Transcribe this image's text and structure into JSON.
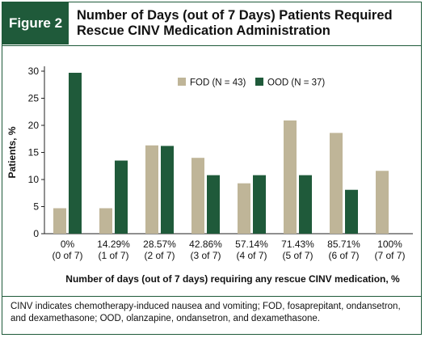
{
  "figure": {
    "label": "Figure 2",
    "title_line1": "Number of Days (out of 7 Days) Patients Required",
    "title_line2": "Rescue CINV Medication Administration"
  },
  "chart_data": {
    "type": "bar",
    "categories": [
      [
        "0%",
        "(0 of 7)"
      ],
      [
        "14.29%",
        "(1 of 7)"
      ],
      [
        "28.57%",
        "(2 of 7)"
      ],
      [
        "42.86%",
        "(3 of 7)"
      ],
      [
        "57.14%",
        "(4 of 7)"
      ],
      [
        "71.43%",
        "(5 of 7)"
      ],
      [
        "85.71%",
        "(6 of 7)"
      ],
      [
        "100%",
        "(7 of 7)"
      ]
    ],
    "series": [
      {
        "name": "FOD (N = 43)",
        "color": "#bfb598",
        "values": [
          4.7,
          4.7,
          16.3,
          14.0,
          9.3,
          20.9,
          18.6,
          11.6
        ]
      },
      {
        "name": "OOD (N = 37)",
        "color": "#1f5a3a",
        "values": [
          29.7,
          13.5,
          16.2,
          10.8,
          10.8,
          10.8,
          8.1,
          null
        ]
      }
    ],
    "xlabel": "Number of days (out of 7 days) requiring any rescue CINV medication, %",
    "ylabel": "Patients, %",
    "ylim": [
      0,
      30
    ],
    "yticks": [
      0,
      5,
      10,
      15,
      20,
      25,
      30
    ],
    "legend_position": "top-center",
    "grid": false
  },
  "footnote": "CINV indicates chemotherapy-induced nausea and vomiting; FOD, fosaprepitant, ondansetron, and dexamethasone; OOD, olanzapine, ondansetron, and dexamethasone."
}
